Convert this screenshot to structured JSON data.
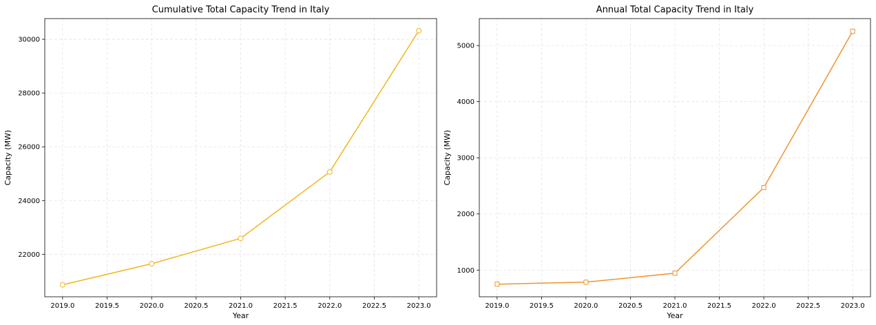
{
  "chart_data": [
    {
      "type": "line",
      "title": "Cumulative Total Capacity Trend in Italy",
      "xlabel": "Year",
      "ylabel": "Capacity (MW)",
      "x": [
        2019,
        2020,
        2021,
        2022,
        2023
      ],
      "series": [
        {
          "values": [
            20865,
            21650,
            22595,
            25065,
            30320
          ]
        }
      ],
      "xlim": [
        2018.8,
        2023.2
      ],
      "ylim": [
        20420,
        30770
      ],
      "xticks": [
        "2019.0",
        "2019.5",
        "2020.0",
        "2020.5",
        "2021.0",
        "2021.5",
        "2022.0",
        "2022.5",
        "2023.0"
      ],
      "yticks": [
        "22000",
        "24000",
        "26000",
        "28000",
        "30000"
      ],
      "marker": "circle",
      "color": "#f2b51b",
      "grid": true
    },
    {
      "type": "line",
      "title": "Annual Total Capacity Trend in Italy",
      "xlabel": "Year",
      "ylabel": "Capacity (MW)",
      "x": [
        2019,
        2020,
        2021,
        2022,
        2023
      ],
      "series": [
        {
          "values": [
            750,
            785,
            945,
            2470,
            5255
          ]
        }
      ],
      "xlim": [
        2018.8,
        2023.2
      ],
      "ylim": [
        525,
        5480
      ],
      "xticks": [
        "2019.0",
        "2019.5",
        "2020.0",
        "2020.5",
        "2021.0",
        "2021.5",
        "2022.0",
        "2022.5",
        "2023.0"
      ],
      "yticks": [
        "1000",
        "2000",
        "3000",
        "4000",
        "5000"
      ],
      "marker": "square",
      "color": "#f0922b",
      "grid": true
    }
  ]
}
